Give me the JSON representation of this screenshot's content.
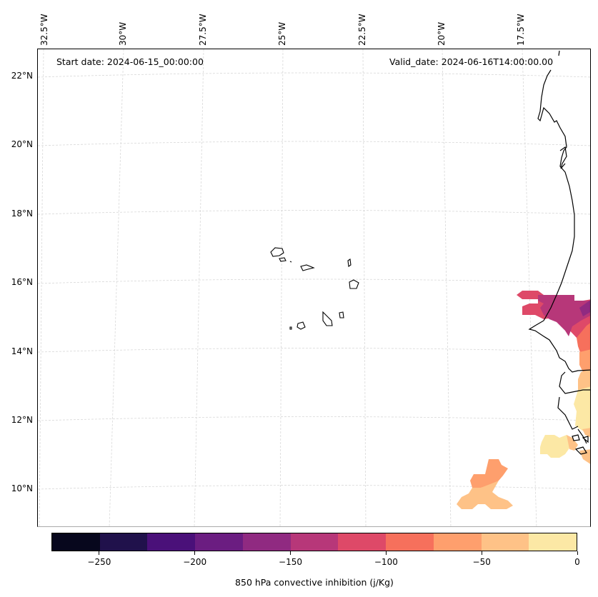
{
  "map": {
    "start_date_label": "Start date: 2024-06-15_00:00:00",
    "valid_date_label": "Valid_date: 2024-06-16T14:00:00.00",
    "lon_labels": [
      "32.5°W",
      "30°W",
      "27.5°W",
      "25°W",
      "22.5°W",
      "20°W",
      "17.5°W"
    ],
    "lat_labels": [
      "22°N",
      "20°N",
      "18°N",
      "16°N",
      "14°N",
      "12°N",
      "10°N"
    ],
    "features": {
      "coastline": "West Africa (Mauritania, Senegal, Gambia, Guinea-Bissau)",
      "islands": "Cape Verde"
    },
    "field_regions": [
      {
        "name": "north-senegal-plume",
        "values_jkg": [
          -150,
          -125,
          -100,
          -75
        ]
      },
      {
        "name": "coastal-strip",
        "values_jkg": [
          -75,
          -50,
          -25,
          0
        ]
      },
      {
        "name": "guinea-offshore",
        "values_jkg": [
          -25,
          0
        ]
      },
      {
        "name": "southern-ocean-blob",
        "values_jkg": [
          -75,
          -50
        ]
      }
    ]
  },
  "colorbar": {
    "title": "850 hPa convective inhibition (j/Kg)",
    "boundaries": [
      -275,
      -250,
      -225,
      -200,
      -175,
      -150,
      -125,
      -100,
      -75,
      -50,
      -25,
      0
    ],
    "colors": [
      "#07071d",
      "#20114b",
      "#4a1079",
      "#6b1d81",
      "#902a81",
      "#b73779",
      "#de4968",
      "#f6705c",
      "#fe9f6d",
      "#fec287",
      "#fce8a5"
    ],
    "tick_values": [
      -250,
      -200,
      -150,
      -100,
      -50,
      0
    ],
    "tick_labels": [
      "−250",
      "−200",
      "−150",
      "−100",
      "−50",
      "0"
    ]
  }
}
